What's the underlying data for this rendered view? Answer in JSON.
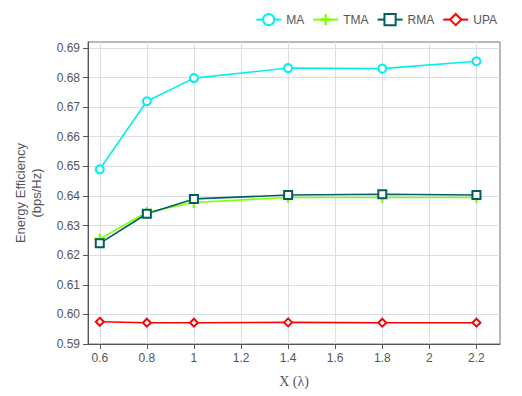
{
  "chart_data": {
    "type": "line",
    "xlabel": "X (λ)",
    "ylabel": "Energy Efficiency\n(bps/Hz)",
    "x": [
      0.6,
      0.8,
      1.0,
      1.4,
      1.8,
      2.2
    ],
    "series": [
      {
        "name": "MA",
        "color": "#00EFEF",
        "marker": "circle",
        "values": [
          0.649,
          0.672,
          0.6798,
          0.6832,
          0.683,
          0.6855
        ]
      },
      {
        "name": "TMA",
        "color": "#80FF00",
        "marker": "plus",
        "values": [
          0.6255,
          0.6345,
          0.6378,
          0.6395,
          0.6395,
          0.6395
        ]
      },
      {
        "name": "RMA",
        "color": "#006060",
        "marker": "square",
        "values": [
          0.624,
          0.634,
          0.639,
          0.6403,
          0.6406,
          0.6403
        ]
      },
      {
        "name": "UPA",
        "color": "#FF0000",
        "marker": "diamond",
        "values": [
          0.5975,
          0.5972,
          0.5972,
          0.5973,
          0.5972,
          0.5972
        ]
      }
    ],
    "xlim": [
      0.55,
      2.3
    ],
    "ylim": [
      0.59,
      0.692
    ],
    "xticks": [
      0.6,
      0.8,
      1,
      1.2,
      1.4,
      1.6,
      1.8,
      2,
      2.2
    ],
    "yticks": [
      0.59,
      {
        "value": 0.6,
        "label": "0.60"
      },
      0.61,
      0.62,
      0.63,
      0.64,
      0.65,
      0.66,
      0.67,
      0.68,
      0.69
    ],
    "grid": true,
    "legend": "upper right"
  }
}
